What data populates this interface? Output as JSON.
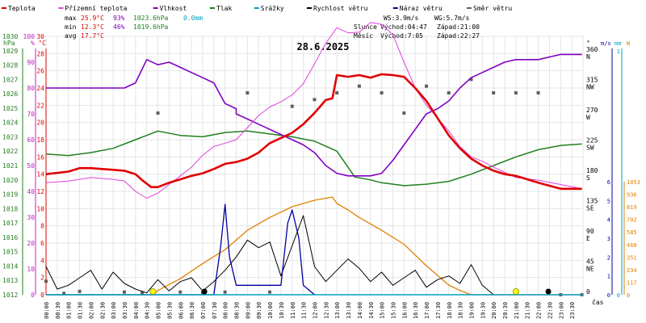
{
  "chart_data": {
    "type": "line",
    "title": "28.6.2025",
    "legend": [
      {
        "label": "Teplota",
        "color": "#e00000"
      },
      {
        "label": "Přízemní teplota",
        "color": "#e040e0"
      },
      {
        "label": "Vlhkost",
        "color": "#8000c0"
      },
      {
        "label": "Tlak",
        "color": "#208020"
      },
      {
        "label": "Srážky",
        "color": "#00a0c0"
      },
      {
        "label": "Rychlost větru",
        "color": "#000000"
      },
      {
        "label": "Náraz větru",
        "color": "#0000a0"
      },
      {
        "label": "Směr větru",
        "color": "#606060"
      }
    ],
    "stats": {
      "max": {
        "label": "max",
        "temp": "25.9°C",
        "hum": "93%",
        "press": "1023.6hPa",
        "rain": "0.0mm"
      },
      "min": {
        "label": "min",
        "temp": "12.3°C",
        "hum": "46%",
        "press": "1019.6hPa"
      },
      "avg": {
        "label": "avg",
        "temp": "17.7°C"
      }
    },
    "wind_info": {
      "ws": "WS:3.9m/s",
      "wg": "WG:5.7m/s"
    },
    "sun": {
      "label": "Slunce",
      "rise": "Východ:04:47",
      "set": "Západ:21:00"
    },
    "moon": {
      "label": "Měsíc",
      "rise": "Východ:7:05",
      "set": "Západ:22:27"
    },
    "axes": {
      "x_title": "čas",
      "hpa_title": "hPa",
      "pct_title": "%",
      "temp_title": "°C",
      "deg_title": "°",
      "ms_title": "m/s",
      "mm_title": "mm",
      "w_title": "W",
      "x_ticks": [
        "00:00",
        "00:30",
        "01:00",
        "01:30",
        "02:00",
        "02:30",
        "03:00",
        "03:30",
        "04:00",
        "04:30",
        "05:00",
        "05:30",
        "06:00",
        "06:30",
        "07:00",
        "07:30",
        "08:00",
        "08:30",
        "09:00",
        "09:30",
        "10:00",
        "10:30",
        "11:00",
        "11:30",
        "12:00",
        "12:30",
        "13:00",
        "13:30",
        "14:00",
        "14:30",
        "15:00",
        "15:30",
        "16:00",
        "16:30",
        "17:00",
        "17:30",
        "18:00",
        "18:30",
        "19:00",
        "19:30",
        "20:00",
        "20:30",
        "21:00",
        "21:30",
        "22:00",
        "22:30",
        "23:00",
        "23:30"
      ],
      "hpa_ticks": [
        "1012",
        "1013",
        "1014",
        "1015",
        "1016",
        "1017",
        "1018",
        "1019",
        "1020",
        "1021",
        "1022",
        "1023",
        "1024",
        "1025",
        "1026",
        "1027",
        "1028",
        "1029",
        "1030"
      ],
      "hpa_range": [
        1012,
        1030
      ],
      "pct_ticks": [
        "0",
        "10",
        "20",
        "30",
        "40",
        "50",
        "60",
        "70",
        "80",
        "90",
        "100"
      ],
      "temp_ticks": [
        "0",
        "2",
        "4",
        "6",
        "8",
        "10",
        "12",
        "14",
        "16",
        "18",
        "20",
        "22",
        "24",
        "26",
        "28",
        "30"
      ],
      "temp_range": [
        0,
        30
      ],
      "dir_ticks": [
        {
          "deg": "0",
          "dir": ""
        },
        {
          "deg": "45",
          "dir": "NE"
        },
        {
          "deg": "90",
          "dir": "E"
        },
        {
          "deg": "135",
          "dir": "SE"
        },
        {
          "deg": "180",
          "dir": "S"
        },
        {
          "deg": "225",
          "dir": "SW"
        },
        {
          "deg": "270",
          "dir": "W"
        },
        {
          "deg": "315",
          "dir": "NW"
        },
        {
          "deg": "360",
          "dir": "N"
        }
      ],
      "ms_ticks": [
        "0",
        "1",
        "2",
        "3",
        "4",
        "5",
        "6"
      ],
      "ms_range": [
        0,
        6
      ],
      "mm_ticks": [
        "0",
        "1"
      ],
      "w_ticks": [
        "0",
        "117",
        "234",
        "351",
        "468",
        "585",
        "702",
        "819",
        "936",
        "1053"
      ],
      "w_range": [
        0,
        1053
      ]
    },
    "series": {
      "temperature": [
        [
          0,
          14.0
        ],
        [
          1,
          14.3
        ],
        [
          1.5,
          14.7
        ],
        [
          2,
          14.7
        ],
        [
          2.5,
          14.6
        ],
        [
          3,
          14.5
        ],
        [
          3.5,
          14.4
        ],
        [
          4,
          14.0
        ],
        [
          4.3,
          13.3
        ],
        [
          4.7,
          12.5
        ],
        [
          5,
          12.5
        ],
        [
          5.5,
          13.0
        ],
        [
          6,
          13.4
        ],
        [
          6.5,
          13.8
        ],
        [
          7,
          14.1
        ],
        [
          7.5,
          14.6
        ],
        [
          8,
          15.2
        ],
        [
          8.5,
          15.4
        ],
        [
          9,
          15.8
        ],
        [
          9.5,
          16.5
        ],
        [
          10,
          17.6
        ],
        [
          10.5,
          18.2
        ],
        [
          11,
          18.8
        ],
        [
          11.5,
          19.8
        ],
        [
          12,
          21.1
        ],
        [
          12.5,
          22.6
        ],
        [
          12.8,
          22.8
        ],
        [
          13,
          25.5
        ],
        [
          13.5,
          25.3
        ],
        [
          14,
          25.5
        ],
        [
          14.5,
          25.2
        ],
        [
          15,
          25.6
        ],
        [
          15.5,
          25.5
        ],
        [
          16,
          25.3
        ],
        [
          16.5,
          24.0
        ],
        [
          17,
          22.5
        ],
        [
          17.5,
          20.5
        ],
        [
          18,
          18.5
        ],
        [
          18.5,
          17.0
        ],
        [
          19,
          15.8
        ],
        [
          19.5,
          15.0
        ],
        [
          20,
          14.4
        ],
        [
          20.5,
          14.0
        ],
        [
          21,
          13.8
        ],
        [
          22,
          13.0
        ],
        [
          23,
          12.3
        ],
        [
          23.95,
          12.3
        ]
      ],
      "ground_temperature": [
        [
          0,
          13.0
        ],
        [
          1,
          13.2
        ],
        [
          2,
          13.6
        ],
        [
          3,
          13.4
        ],
        [
          3.5,
          13.2
        ],
        [
          4,
          12.0
        ],
        [
          4.5,
          11.2
        ],
        [
          5,
          11.8
        ],
        [
          5.5,
          12.8
        ],
        [
          6,
          13.8
        ],
        [
          6.5,
          14.8
        ],
        [
          7,
          16.2
        ],
        [
          7.5,
          17.2
        ],
        [
          8,
          17.6
        ],
        [
          8.5,
          18.0
        ],
        [
          9,
          19.4
        ],
        [
          9.5,
          20.8
        ],
        [
          10,
          21.8
        ],
        [
          10.5,
          22.4
        ],
        [
          11,
          23.2
        ],
        [
          11.5,
          24.5
        ],
        [
          12,
          26.8
        ],
        [
          12.5,
          29.2
        ],
        [
          13,
          31.0
        ],
        [
          13.5,
          30.4
        ],
        [
          14,
          30.5
        ],
        [
          14.5,
          31.6
        ],
        [
          15,
          31.4
        ],
        [
          15.5,
          30.2
        ],
        [
          16,
          27.0
        ],
        [
          16.5,
          24.0
        ],
        [
          17,
          22.0
        ],
        [
          17.5,
          20.5
        ],
        [
          18,
          19.0
        ],
        [
          18.5,
          17.2
        ],
        [
          19,
          16.0
        ],
        [
          19.5,
          15.5
        ],
        [
          20,
          14.8
        ],
        [
          20.5,
          14.2
        ],
        [
          21,
          13.6
        ],
        [
          22,
          13.3
        ],
        [
          23,
          12.8
        ],
        [
          23.95,
          12.3
        ]
      ],
      "humidity": [
        [
          0,
          80
        ],
        [
          1.5,
          80
        ],
        [
          2.5,
          80
        ],
        [
          3.5,
          80
        ],
        [
          4,
          82
        ],
        [
          4.5,
          91
        ],
        [
          5,
          89
        ],
        [
          5.5,
          90
        ],
        [
          6,
          88
        ],
        [
          6.5,
          86
        ],
        [
          7,
          84
        ],
        [
          7.5,
          82
        ],
        [
          8,
          74
        ],
        [
          8.5,
          72
        ],
        [
          8.5,
          70
        ],
        [
          9,
          68
        ],
        [
          9.5,
          66
        ],
        [
          10,
          64
        ],
        [
          10.5,
          62
        ],
        [
          11,
          60
        ],
        [
          11.5,
          58
        ],
        [
          12,
          55
        ],
        [
          12.5,
          50
        ],
        [
          13,
          47
        ],
        [
          13.5,
          46
        ],
        [
          14,
          46
        ],
        [
          14.5,
          46
        ],
        [
          15,
          47
        ],
        [
          15.5,
          52
        ],
        [
          16,
          58
        ],
        [
          16.5,
          64
        ],
        [
          17,
          70
        ],
        [
          17.5,
          72
        ],
        [
          18,
          75
        ],
        [
          18.5,
          80
        ],
        [
          19,
          84
        ],
        [
          19.5,
          86
        ],
        [
          20,
          88
        ],
        [
          20.5,
          90
        ],
        [
          21,
          91
        ],
        [
          22,
          91
        ],
        [
          23,
          93
        ],
        [
          23.95,
          93
        ]
      ],
      "pressure": [
        [
          0,
          1021.8
        ],
        [
          1,
          1021.7
        ],
        [
          2,
          1021.9
        ],
        [
          3,
          1022.2
        ],
        [
          4,
          1022.8
        ],
        [
          5,
          1023.4
        ],
        [
          6,
          1023.1
        ],
        [
          7,
          1023.0
        ],
        [
          8,
          1023.3
        ],
        [
          9,
          1023.4
        ],
        [
          10,
          1023.2
        ],
        [
          11,
          1023.0
        ],
        [
          12,
          1022.7
        ],
        [
          13,
          1022.0
        ],
        [
          13.8,
          1020.2
        ],
        [
          14.5,
          1020.0
        ],
        [
          15,
          1019.8
        ],
        [
          16,
          1019.6
        ],
        [
          17,
          1019.7
        ],
        [
          18,
          1019.9
        ],
        [
          19,
          1020.4
        ],
        [
          20,
          1021.0
        ],
        [
          21,
          1021.6
        ],
        [
          22,
          1022.1
        ],
        [
          23,
          1022.4
        ],
        [
          23.95,
          1022.5
        ]
      ],
      "wind_speed": [
        [
          0,
          1.5
        ],
        [
          0.5,
          0.3
        ],
        [
          1,
          0.5
        ],
        [
          1.5,
          0.9
        ],
        [
          2,
          1.3
        ],
        [
          2.5,
          0.3
        ],
        [
          3,
          1.2
        ],
        [
          3.5,
          0.6
        ],
        [
          4,
          0.3
        ],
        [
          4.5,
          0.1
        ],
        [
          5,
          0.8
        ],
        [
          5.5,
          0.2
        ],
        [
          6,
          0.7
        ],
        [
          6.5,
          0.9
        ],
        [
          7,
          0.2
        ],
        [
          7.5,
          0.7
        ],
        [
          8,
          1.3
        ],
        [
          8.5,
          2.0
        ],
        [
          9,
          2.9
        ],
        [
          9.5,
          2.5
        ],
        [
          10,
          2.8
        ],
        [
          10.5,
          1.0
        ],
        [
          11,
          2.6
        ],
        [
          11.5,
          4.2
        ],
        [
          12,
          1.5
        ],
        [
          12.5,
          0.7
        ],
        [
          13,
          1.3
        ],
        [
          13.5,
          1.9
        ],
        [
          14,
          1.4
        ],
        [
          14.5,
          0.7
        ],
        [
          15,
          1.2
        ],
        [
          15.5,
          0.5
        ],
        [
          16,
          0.9
        ],
        [
          16.5,
          1.3
        ],
        [
          17,
          0.4
        ],
        [
          17.5,
          0.8
        ],
        [
          18,
          1.0
        ],
        [
          18.5,
          0.6
        ],
        [
          19,
          1.6
        ],
        [
          19.5,
          0.5
        ],
        [
          20,
          0.0
        ],
        [
          21,
          0.0
        ],
        [
          22,
          0.0
        ],
        [
          23,
          0.0
        ],
        [
          23.95,
          0.0
        ]
      ],
      "wind_gust": [
        [
          0,
          0
        ],
        [
          6,
          0
        ],
        [
          7.5,
          0
        ],
        [
          7.8,
          2.5
        ],
        [
          8,
          4.8
        ],
        [
          8.2,
          2.0
        ],
        [
          8.5,
          0.5
        ],
        [
          10.5,
          0.5
        ],
        [
          10.8,
          3.8
        ],
        [
          11,
          4.5
        ],
        [
          11.3,
          3.0
        ],
        [
          11.5,
          0.5
        ],
        [
          12,
          0
        ]
      ],
      "solar": [
        [
          0,
          0
        ],
        [
          4.8,
          0
        ],
        [
          5,
          40
        ],
        [
          6,
          150
        ],
        [
          7,
          290
        ],
        [
          8,
          420
        ],
        [
          9,
          600
        ],
        [
          10,
          720
        ],
        [
          11,
          820
        ],
        [
          12,
          880
        ],
        [
          12.8,
          910
        ],
        [
          13,
          850
        ],
        [
          13.5,
          790
        ],
        [
          14,
          720
        ],
        [
          15,
          600
        ],
        [
          16,
          470
        ],
        [
          17,
          270
        ],
        [
          18,
          90
        ],
        [
          18.5,
          40
        ],
        [
          19,
          0
        ],
        [
          23.95,
          0
        ]
      ],
      "wind_direction": [
        [
          0,
          20
        ],
        [
          0.8,
          2
        ],
        [
          1.5,
          5
        ],
        [
          3.5,
          4
        ],
        [
          4.3,
          3
        ],
        [
          5,
          270
        ],
        [
          6,
          4
        ],
        [
          7,
          3
        ],
        [
          8,
          4
        ],
        [
          9,
          300
        ],
        [
          10,
          4
        ],
        [
          11,
          280
        ],
        [
          12,
          290
        ],
        [
          13,
          300
        ],
        [
          14,
          310
        ],
        [
          15,
          300
        ],
        [
          16,
          270
        ],
        [
          17,
          310
        ],
        [
          18,
          300
        ],
        [
          19,
          320
        ],
        [
          20,
          300
        ],
        [
          21,
          300
        ],
        [
          22,
          300
        ],
        [
          23,
          0
        ],
        [
          23.95,
          0
        ]
      ],
      "markers": [
        {
          "type": "sunrise",
          "x": 4.78
        },
        {
          "type": "moonrise",
          "x": 7.08
        },
        {
          "type": "sunset",
          "x": 21.0
        },
        {
          "type": "moonset",
          "x": 22.45
        }
      ]
    }
  }
}
